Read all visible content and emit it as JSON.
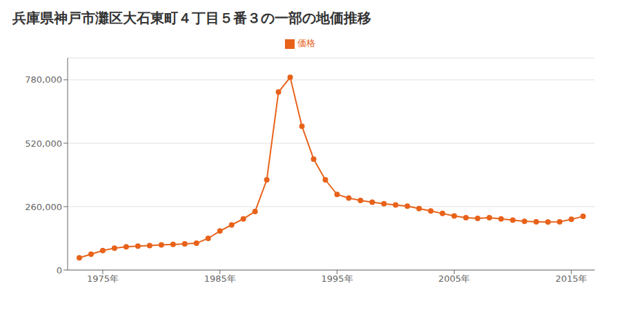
{
  "chart_data": {
    "type": "line",
    "title": "兵庫県神戸市灘区大石東町４丁目５番３の一部の地価推移",
    "x": [
      1973,
      1974,
      1975,
      1976,
      1977,
      1978,
      1979,
      1980,
      1981,
      1982,
      1983,
      1984,
      1985,
      1986,
      1987,
      1988,
      1989,
      1990,
      1991,
      1992,
      1993,
      1994,
      1995,
      1996,
      1997,
      1998,
      1999,
      2000,
      2001,
      2002,
      2003,
      2004,
      2005,
      2006,
      2007,
      2008,
      2009,
      2010,
      2011,
      2012,
      2013,
      2014,
      2015,
      2016
    ],
    "series": [
      {
        "name": "価格",
        "color": "#e8621a",
        "marker": "circle",
        "values": [
          50000,
          65000,
          80000,
          90000,
          95000,
          98000,
          100000,
          103000,
          105000,
          107000,
          110000,
          130000,
          160000,
          185000,
          210000,
          240000,
          370000,
          730000,
          790000,
          590000,
          455000,
          370000,
          310000,
          295000,
          285000,
          278000,
          272000,
          267000,
          262000,
          252000,
          242000,
          232000,
          222000,
          215000,
          212000,
          215000,
          210000,
          205000,
          200000,
          198000,
          197000,
          198000,
          208000,
          220000
        ]
      }
    ],
    "xlim": [
      1972,
      2017
    ],
    "xticks": [
      {
        "value": 1975,
        "label": "1975年"
      },
      {
        "value": 1985,
        "label": "1985年"
      },
      {
        "value": 1995,
        "label": "1995年"
      },
      {
        "value": 2005,
        "label": "2005年"
      },
      {
        "value": 2015,
        "label": "2015年"
      }
    ],
    "ylim": [
      0,
      870000
    ],
    "yticks": [
      0,
      {
        "value": 260000,
        "label": "260,000"
      },
      {
        "value": 520000,
        "label": "520,000"
      },
      {
        "value": 780000,
        "label": "780,000"
      }
    ],
    "grid": "y",
    "legend": "top"
  }
}
